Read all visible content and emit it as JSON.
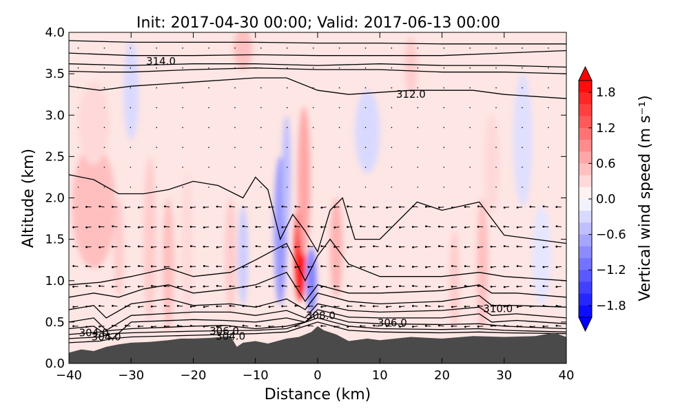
{
  "chart_data": {
    "type": "heatmap",
    "title": "Init: 2017-04-30 00:00; Valid: 2017-06-13 00:00",
    "xlabel": "Distance (km)",
    "ylabel": "Altitude (km)",
    "xlim": [
      -40,
      40
    ],
    "ylim": [
      0.0,
      4.0
    ],
    "x_ticks": [
      "−40",
      "−30",
      "−20",
      "−10",
      "0",
      "10",
      "20",
      "30",
      "40"
    ],
    "y_ticks": [
      "0.0",
      "0.5",
      "1.0",
      "1.5",
      "2.0",
      "2.5",
      "3.0",
      "3.5",
      "4.0"
    ],
    "colorbar": {
      "label": "Vertical wind speed (m s⁻¹)",
      "range": [
        -2.0,
        2.0
      ],
      "extend": "both",
      "cmap": "bwr",
      "tick_values": [
        1.8,
        1.2,
        0.6,
        0.0,
        -0.6,
        -1.2,
        -1.8
      ],
      "tick_labels": [
        "1.8",
        "1.2",
        "0.6",
        "0.0",
        "−0.6",
        "−1.2",
        "−1.8"
      ]
    },
    "terrain": {
      "color": "#4a4a4a",
      "x": [
        -40,
        -38,
        -36,
        -34,
        -32,
        -30,
        -27,
        -24,
        -22,
        -20,
        -17,
        -14,
        -13,
        -12,
        -10,
        -8,
        -5,
        -3,
        -1,
        0,
        1,
        3,
        5,
        8,
        10,
        15,
        20,
        25,
        30,
        35,
        38,
        40
      ],
      "y": [
        0.13,
        0.17,
        0.15,
        0.2,
        0.23,
        0.25,
        0.26,
        0.28,
        0.3,
        0.3,
        0.31,
        0.33,
        0.2,
        0.25,
        0.27,
        0.24,
        0.3,
        0.32,
        0.38,
        0.45,
        0.4,
        0.35,
        0.27,
        0.3,
        0.28,
        0.32,
        0.3,
        0.33,
        0.32,
        0.33,
        0.37,
        0.32
      ]
    },
    "wind_shading": [
      {
        "x": -36,
        "y": 1.9,
        "rx": 3.5,
        "ry": 0.75,
        "value": 0.5
      },
      {
        "x": -36,
        "y": 2.9,
        "rx": 2.5,
        "ry": 0.5,
        "value": 0.3
      },
      {
        "x": -32,
        "y": 1.4,
        "rx": 0.8,
        "ry": 0.6,
        "value": 0.4
      },
      {
        "x": -27,
        "y": 1.5,
        "rx": 1.0,
        "ry": 1.0,
        "value": 0.4
      },
      {
        "x": -24,
        "y": 1.2,
        "rx": 0.9,
        "ry": 0.8,
        "value": 0.5
      },
      {
        "x": -21,
        "y": 1.4,
        "rx": 0.9,
        "ry": 0.9,
        "value": 0.3
      },
      {
        "x": -14,
        "y": 1.3,
        "rx": 0.9,
        "ry": 0.7,
        "value": 0.4
      },
      {
        "x": -12,
        "y": 3.8,
        "rx": 1.5,
        "ry": 0.25,
        "value": 0.5
      },
      {
        "x": -12,
        "y": 1.3,
        "rx": 0.8,
        "ry": 0.6,
        "value": -0.4
      },
      {
        "x": -6,
        "y": 1.6,
        "rx": 1.0,
        "ry": 0.9,
        "value": -0.8
      },
      {
        "x": -5,
        "y": 2.3,
        "rx": 0.7,
        "ry": 0.7,
        "value": -0.5
      },
      {
        "x": -2.8,
        "y": 1.35,
        "rx": 0.9,
        "ry": 0.6,
        "value": 1.8
      },
      {
        "x": -2.2,
        "y": 2.2,
        "rx": 1.0,
        "ry": 0.9,
        "value": 0.7
      },
      {
        "x": -1.0,
        "y": 1.0,
        "rx": 0.8,
        "ry": 0.4,
        "value": -1.0
      },
      {
        "x": 3,
        "y": 1.4,
        "rx": 1.0,
        "ry": 0.6,
        "value": 0.6
      },
      {
        "x": -30,
        "y": 3.3,
        "rx": 1.2,
        "ry": 0.6,
        "value": -0.3
      },
      {
        "x": 8,
        "y": 2.8,
        "rx": 2.0,
        "ry": 0.5,
        "value": -0.3
      },
      {
        "x": 15,
        "y": 3.6,
        "rx": 1.0,
        "ry": 0.35,
        "value": 0.4
      },
      {
        "x": 22,
        "y": 1.0,
        "rx": 0.8,
        "ry": 0.6,
        "value": 0.4
      },
      {
        "x": 26.5,
        "y": 1.2,
        "rx": 0.9,
        "ry": 0.8,
        "value": 0.5
      },
      {
        "x": 28,
        "y": 2.4,
        "rx": 1.2,
        "ry": 0.6,
        "value": 0.3
      },
      {
        "x": 33,
        "y": 2.7,
        "rx": 1.5,
        "ry": 0.8,
        "value": -0.25
      },
      {
        "x": 36,
        "y": 1.3,
        "rx": 1.5,
        "ry": 0.6,
        "value": -0.2
      }
    ],
    "contours": [
      {
        "x": [
          -40,
          -35,
          -33,
          -30,
          -20,
          -10,
          -5,
          0,
          5,
          10,
          20,
          26,
          30,
          40
        ],
        "y": [
          0.25,
          0.27,
          0.3,
          0.32,
          0.34,
          0.36,
          0.38,
          0.5,
          0.4,
          0.38,
          0.37,
          0.38,
          0.37,
          0.36
        ]
      },
      {
        "x": [
          -40,
          -35,
          -33,
          -30,
          -20,
          -10,
          -5,
          0,
          5,
          10,
          20,
          26,
          30,
          40
        ],
        "y": [
          0.3,
          0.32,
          0.36,
          0.37,
          0.39,
          0.4,
          0.42,
          0.55,
          0.45,
          0.42,
          0.41,
          0.42,
          0.4,
          0.38
        ]
      },
      {
        "x": [
          -40,
          -35,
          -33,
          -30,
          -20,
          -15,
          -10,
          -5,
          -2,
          0,
          5,
          10,
          20,
          26,
          30,
          40
        ],
        "y": [
          0.35,
          0.38,
          0.4,
          0.42,
          0.45,
          0.46,
          0.42,
          0.45,
          0.5,
          0.6,
          0.5,
          0.48,
          0.47,
          0.48,
          0.45,
          0.42
        ]
      },
      {
        "x": [
          -40,
          -36,
          -33,
          -30,
          -20,
          -15,
          -10,
          -5,
          -2,
          0,
          5,
          10,
          20,
          26,
          28,
          32,
          40
        ],
        "y": [
          0.42,
          0.45,
          0.3,
          0.5,
          0.53,
          0.52,
          0.5,
          0.55,
          0.5,
          0.65,
          0.56,
          0.55,
          0.55,
          0.6,
          0.5,
          0.52,
          0.48
        ]
      },
      {
        "x": [
          -40,
          -36,
          -34,
          -30,
          -20,
          -14,
          -10,
          -5,
          -2,
          0,
          5,
          10,
          20,
          26,
          28,
          32,
          40
        ],
        "y": [
          0.5,
          0.55,
          0.4,
          0.58,
          0.62,
          0.62,
          0.58,
          0.64,
          0.55,
          0.72,
          0.64,
          0.62,
          0.64,
          0.68,
          0.58,
          0.6,
          0.55
        ]
      },
      {
        "x": [
          -40,
          -36,
          -34,
          -30,
          -24,
          -20,
          -14,
          -10,
          -5,
          -2,
          0,
          5,
          10,
          20,
          26,
          28,
          32,
          40
        ],
        "y": [
          0.65,
          0.7,
          0.55,
          0.72,
          0.78,
          0.7,
          0.72,
          0.68,
          0.78,
          0.65,
          0.85,
          0.75,
          0.72,
          0.75,
          0.82,
          0.7,
          0.7,
          0.68
        ]
      },
      {
        "x": [
          -40,
          -36,
          -32,
          -28,
          -24,
          -20,
          -14,
          -10,
          -5,
          -2,
          0,
          5,
          10,
          20,
          26,
          28,
          32,
          40
        ],
        "y": [
          0.8,
          0.85,
          0.8,
          0.9,
          0.95,
          0.85,
          0.9,
          0.95,
          1.1,
          0.75,
          0.95,
          0.85,
          0.85,
          0.88,
          0.95,
          0.85,
          0.85,
          0.8
        ]
      },
      {
        "x": [
          -40,
          -35,
          -30,
          -27,
          -24,
          -20,
          -14,
          -10,
          -5,
          -2,
          0,
          2,
          5,
          10,
          20,
          26,
          30,
          40
        ],
        "y": [
          0.95,
          0.98,
          1.05,
          1.1,
          1.15,
          1.05,
          1.1,
          1.25,
          1.45,
          1.0,
          1.3,
          1.5,
          1.2,
          1.05,
          1.05,
          1.1,
          1.05,
          1.0
        ]
      },
      {
        "x": [
          -40,
          -36,
          -32,
          -28,
          -24,
          -20,
          -16,
          -12,
          -10,
          -8,
          -6,
          -4,
          -2,
          0,
          2,
          4,
          6,
          10,
          16,
          20,
          26,
          30,
          40
        ],
        "y": [
          2.28,
          2.22,
          2.05,
          2.05,
          2.1,
          2.2,
          2.15,
          2.0,
          2.25,
          2.1,
          1.5,
          1.8,
          1.6,
          1.35,
          1.85,
          2.0,
          1.5,
          1.5,
          1.95,
          1.85,
          1.95,
          1.55,
          1.45
        ]
      },
      {
        "x": [
          -40,
          -35,
          -30,
          -20,
          -10,
          -5,
          0,
          5,
          15,
          25,
          30,
          40
        ],
        "y": [
          3.35,
          3.3,
          3.35,
          3.4,
          3.45,
          3.45,
          3.3,
          3.25,
          3.3,
          3.3,
          3.25,
          3.2
        ]
      },
      {
        "x": [
          -40,
          -35,
          -30,
          -20,
          -10,
          0,
          10,
          20,
          30,
          40
        ],
        "y": [
          3.53,
          3.52,
          3.52,
          3.55,
          3.57,
          3.55,
          3.55,
          3.52,
          3.52,
          3.5
        ]
      },
      {
        "x": [
          -40,
          -30,
          -20,
          -10,
          0,
          10,
          20,
          30,
          40
        ],
        "y": [
          3.62,
          3.6,
          3.62,
          3.62,
          3.6,
          3.62,
          3.6,
          3.6,
          3.58
        ]
      },
      {
        "x": [
          -40,
          -30,
          -20,
          -10,
          0,
          10,
          20,
          30,
          40
        ],
        "y": [
          3.75,
          3.72,
          3.72,
          3.73,
          3.72,
          3.72,
          3.72,
          3.75,
          3.78
        ]
      },
      {
        "x": [
          -40,
          -30,
          -20,
          -10,
          0,
          10,
          20,
          30,
          40
        ],
        "y": [
          3.9,
          3.88,
          3.88,
          3.88,
          3.87,
          3.87,
          3.86,
          3.86,
          3.86
        ]
      }
    ],
    "contour_labels": [
      {
        "text": "314.0",
        "x": -25.2,
        "y": 3.65
      },
      {
        "text": "312.0",
        "x": 15,
        "y": 3.25
      },
      {
        "text": "310.0",
        "x": 29,
        "y": 0.66
      },
      {
        "text": "308.0",
        "x": 0.5,
        "y": 0.58
      },
      {
        "text": "306.0",
        "x": 12,
        "y": 0.49
      },
      {
        "text": "306.0",
        "x": -15,
        "y": 0.39
      },
      {
        "text": "304.0",
        "x": -14,
        "y": 0.33
      },
      {
        "text": "304.0",
        "x": -36,
        "y": 0.37
      },
      {
        "text": "304.0",
        "x": -34,
        "y": 0.32
      }
    ]
  }
}
